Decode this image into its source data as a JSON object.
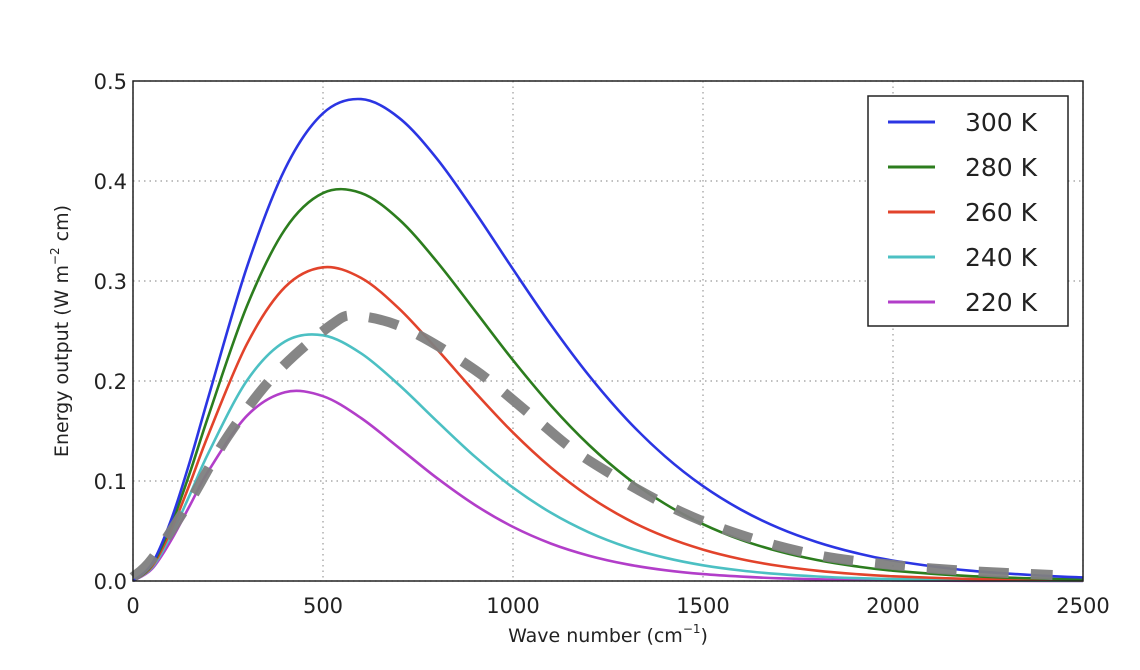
{
  "chart_data": {
    "type": "line",
    "title": "",
    "xlabel": {
      "text": "Wave number (cm",
      "sup": "−1",
      "tail": ")"
    },
    "ylabel": {
      "text": "Energy output (W m",
      "sup": "−2",
      "tail": " cm)"
    },
    "xlim": [
      0,
      2500
    ],
    "ylim": [
      0,
      0.5
    ],
    "x_ticks": [
      "0",
      "500",
      "1000",
      "1500",
      "2000",
      "2500"
    ],
    "y_ticks": [
      "0.0",
      "0.1",
      "0.2",
      "0.3",
      "0.4",
      "0.5"
    ],
    "grid": true,
    "grid_style": "dotted",
    "legend_position": "top-right",
    "x": [
      0,
      50,
      100,
      150,
      200,
      300,
      400,
      500,
      600,
      700,
      800,
      900,
      1000,
      1100,
      1200,
      1300,
      1400,
      1500,
      1600,
      1700,
      1800,
      1900,
      2000,
      2200,
      2400,
      2500
    ],
    "series": [
      {
        "name": "300 K",
        "color": "#2b35e3",
        "style": "solid",
        "values": [
          0,
          0.0173,
          0.0608,
          0.1199,
          0.186,
          0.3142,
          0.4121,
          0.4677,
          0.4819,
          0.4632,
          0.4222,
          0.369,
          0.3118,
          0.2561,
          0.2054,
          0.1614,
          0.1247,
          0.0949,
          0.0713,
          0.0529,
          0.0389,
          0.0283,
          0.0204,
          0.0104,
          0.0052,
          0.0036
        ]
      },
      {
        "name": "280 K",
        "color": "#2c7d1e",
        "style": "solid",
        "values": [
          0,
          0.016,
          0.0557,
          0.1087,
          0.1668,
          0.2751,
          0.3517,
          0.3879,
          0.388,
          0.3616,
          0.3192,
          0.2702,
          0.2208,
          0.1754,
          0.136,
          0.1033,
          0.0772,
          0.0568,
          0.0412,
          0.0296,
          0.021,
          0.0148,
          0.0103,
          0.0049,
          0.0023,
          0.0015
        ]
      },
      {
        "name": "260 K",
        "color": "#e2432b",
        "style": "solid",
        "values": [
          0,
          0.0147,
          0.0506,
          0.0976,
          0.1479,
          0.2372,
          0.2939,
          0.3137,
          0.3031,
          0.2724,
          0.2317,
          0.1888,
          0.1484,
          0.1134,
          0.0846,
          0.0618,
          0.0444,
          0.0314,
          0.0219,
          0.0151,
          0.0103,
          0.007,
          0.0047,
          0.0021,
          0.0009,
          0.0006
        ]
      },
      {
        "name": "240 K",
        "color": "#4cc0c3",
        "style": "solid",
        "values": [
          0,
          0.0134,
          0.0456,
          0.0866,
          0.1292,
          0.2005,
          0.2395,
          0.2457,
          0.2277,
          0.1961,
          0.1597,
          0.1243,
          0.0934,
          0.0682,
          0.0486,
          0.0339,
          0.0233,
          0.0157,
          0.0105,
          0.0069,
          0.0045,
          0.0029,
          0.0019,
          0.0007,
          0.0003,
          0.0002
        ]
      },
      {
        "name": "220 K",
        "color": "#b23ec9",
        "style": "solid",
        "values": [
          0,
          0.0121,
          0.0405,
          0.0758,
          0.1109,
          0.1653,
          0.1888,
          0.1848,
          0.163,
          0.1332,
          0.1029,
          0.076,
          0.0541,
          0.0374,
          0.0253,
          0.0167,
          0.0108,
          0.0069,
          0.0044,
          0.0027,
          0.0017,
          0.001,
          0.0006,
          0.0002,
          0.0001,
          0.0
        ]
      },
      {
        "color": "#808080",
        "style": "dashed",
        "x": [
          0,
          50,
          150,
          250,
          375,
          525,
          590,
          720,
          900,
          1060,
          1190,
          1410,
          1600,
          1800,
          2000,
          2200,
          2420
        ],
        "values": [
          0.004,
          0.022,
          0.08,
          0.145,
          0.207,
          0.257,
          0.265,
          0.252,
          0.211,
          0.162,
          0.123,
          0.075,
          0.046,
          0.026,
          0.016,
          0.01,
          0.006
        ]
      }
    ]
  }
}
